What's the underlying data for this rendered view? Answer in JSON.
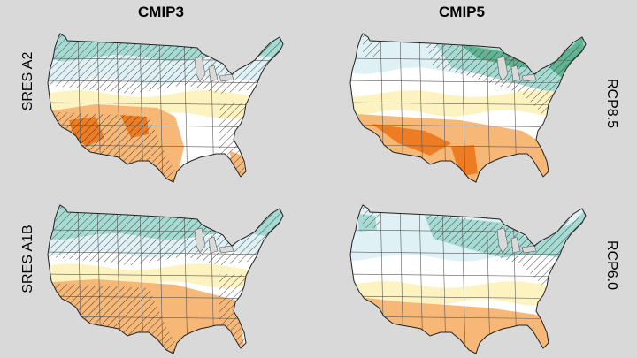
{
  "columns": {
    "left": "CMIP3",
    "right": "CMIP5"
  },
  "rows": {
    "top_left": "SRES A2",
    "bottom_left": "SRES A1B",
    "top_right": "RCP8.5",
    "bottom_right": "RCP6.0"
  },
  "colors": {
    "background": "#d9d9d9",
    "wet_strong": "#5fb592",
    "wet": "#a6dbd4",
    "wet_light": "#dff1f5",
    "neutral": "#ffffff",
    "dry_light": "#fdf3c0",
    "dry": "#f7b777",
    "dry_strong": "#ee7c22",
    "borders": "#5a5a5a",
    "hatch": "#333333"
  },
  "panels": [
    {
      "id": "cmip3-a2",
      "hatch": "dense",
      "pattern": "a2"
    },
    {
      "id": "cmip5-rcp85",
      "hatch": "partial",
      "pattern": "rcp85"
    },
    {
      "id": "cmip3-a1b",
      "hatch": "dense",
      "pattern": "a1b"
    },
    {
      "id": "cmip5-rcp60",
      "hatch": "partial",
      "pattern": "rcp60"
    }
  ]
}
